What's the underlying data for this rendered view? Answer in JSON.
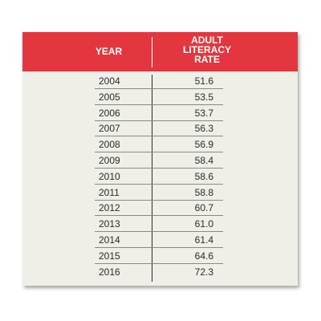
{
  "chart_data": {
    "type": "table",
    "columns": [
      "YEAR",
      "ADULT LITERACY RATE"
    ],
    "header": {
      "year_label": "YEAR",
      "rate_label_lines": [
        "ADULT",
        "LITERACY",
        "RATE"
      ]
    },
    "years": [
      "2004",
      "2005",
      "2006",
      "2007",
      "2008",
      "2009",
      "2010",
      "2011",
      "2012",
      "2013",
      "2014",
      "2015",
      "2016"
    ],
    "rates": [
      "51.6",
      "53.5",
      "53.7",
      "56.3",
      "56.9",
      "58.4",
      "58.6",
      "58.8",
      "60.7",
      "61.0",
      "61.4",
      "64.6",
      "72.3"
    ]
  },
  "colors": {
    "header_background": "#e4363e",
    "header_text": "#ffffff",
    "table_background": "#efefe8",
    "text": "#2a2a2a"
  }
}
